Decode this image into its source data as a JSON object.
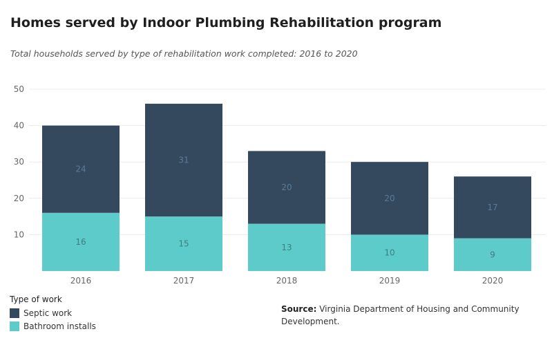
{
  "title": "Homes served by Indoor Plumbing Rehabilitation program",
  "subtitle": "Total households served by type of rehabilitation work completed: 2016 to 2020",
  "legend": {
    "title": "Type of work",
    "items": [
      {
        "label": "Septic work",
        "color": "#34495e"
      },
      {
        "label": "Bathroom installs",
        "color": "#5ecbcb"
      }
    ]
  },
  "source": {
    "label": "Source:",
    "text": "Virginia Department of Housing and Community Development."
  },
  "chart_data": {
    "type": "bar",
    "stacked": true,
    "categories": [
      "2016",
      "2017",
      "2018",
      "2019",
      "2020"
    ],
    "series": [
      {
        "name": "Bathroom installs",
        "values": [
          16,
          15,
          13,
          10,
          9
        ],
        "color": "#5ecbcb"
      },
      {
        "name": "Septic work",
        "values": [
          24,
          31,
          20,
          20,
          17
        ],
        "color": "#34495e"
      }
    ],
    "title": "Homes served by Indoor Plumbing Rehabilitation program",
    "xlabel": "",
    "ylabel": "",
    "ylim": [
      0,
      50
    ],
    "yticks": [
      10,
      20,
      30,
      40,
      50
    ],
    "grid": true,
    "legend_position": "bottom-left",
    "data_labels": true
  }
}
